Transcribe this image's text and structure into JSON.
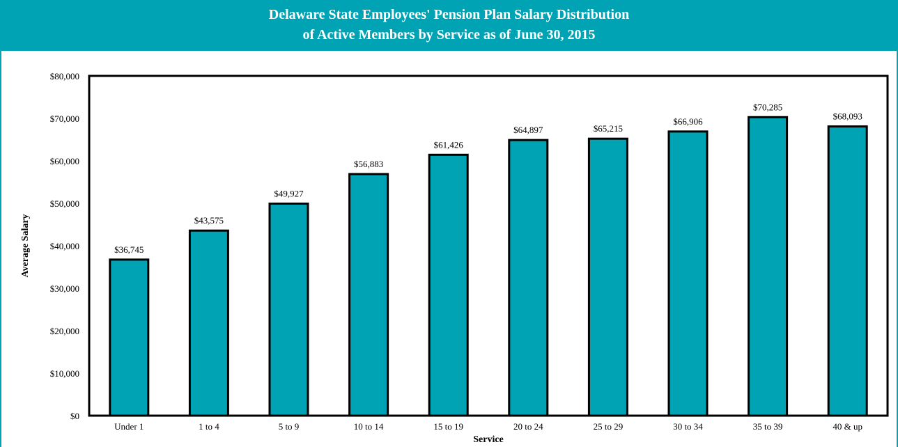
{
  "chart_data": {
    "type": "bar",
    "title": "Delaware State Employees' Pension Plan Salary Distribution",
    "subtitle": "of Active Members by Service as of June 30, 2015",
    "xlabel": "Service",
    "ylabel": "Average Salary",
    "categories": [
      "Under 1",
      "1 to 4",
      "5 to 9",
      "10 to 14",
      "15 to 19",
      "20 to 24",
      "25 to 29",
      "30 to 34",
      "35 to 39",
      "40 & up"
    ],
    "values": [
      36745,
      43575,
      49927,
      56883,
      61426,
      64897,
      65215,
      66906,
      70285,
      68093
    ],
    "data_labels": [
      "$36,745",
      "$43,575",
      "$49,927",
      "$56,883",
      "$61,426",
      "$64,897",
      "$65,215",
      "$66,906",
      "$70,285",
      "$68,093"
    ],
    "ylim": [
      0,
      80000
    ],
    "yticks": [
      0,
      10000,
      20000,
      30000,
      40000,
      50000,
      60000,
      70000,
      80000
    ],
    "ytick_labels": [
      "$0",
      "$10,000",
      "$20,000",
      "$30,000",
      "$40,000",
      "$50,000",
      "$60,000",
      "$70,000",
      "$80,000"
    ],
    "grid": false,
    "legend": "none",
    "colors": {
      "bar_fill": "#00A3B4",
      "bar_stroke": "#000000",
      "banner": "#00A3B4",
      "title_text": "#FFFFFF"
    }
  }
}
